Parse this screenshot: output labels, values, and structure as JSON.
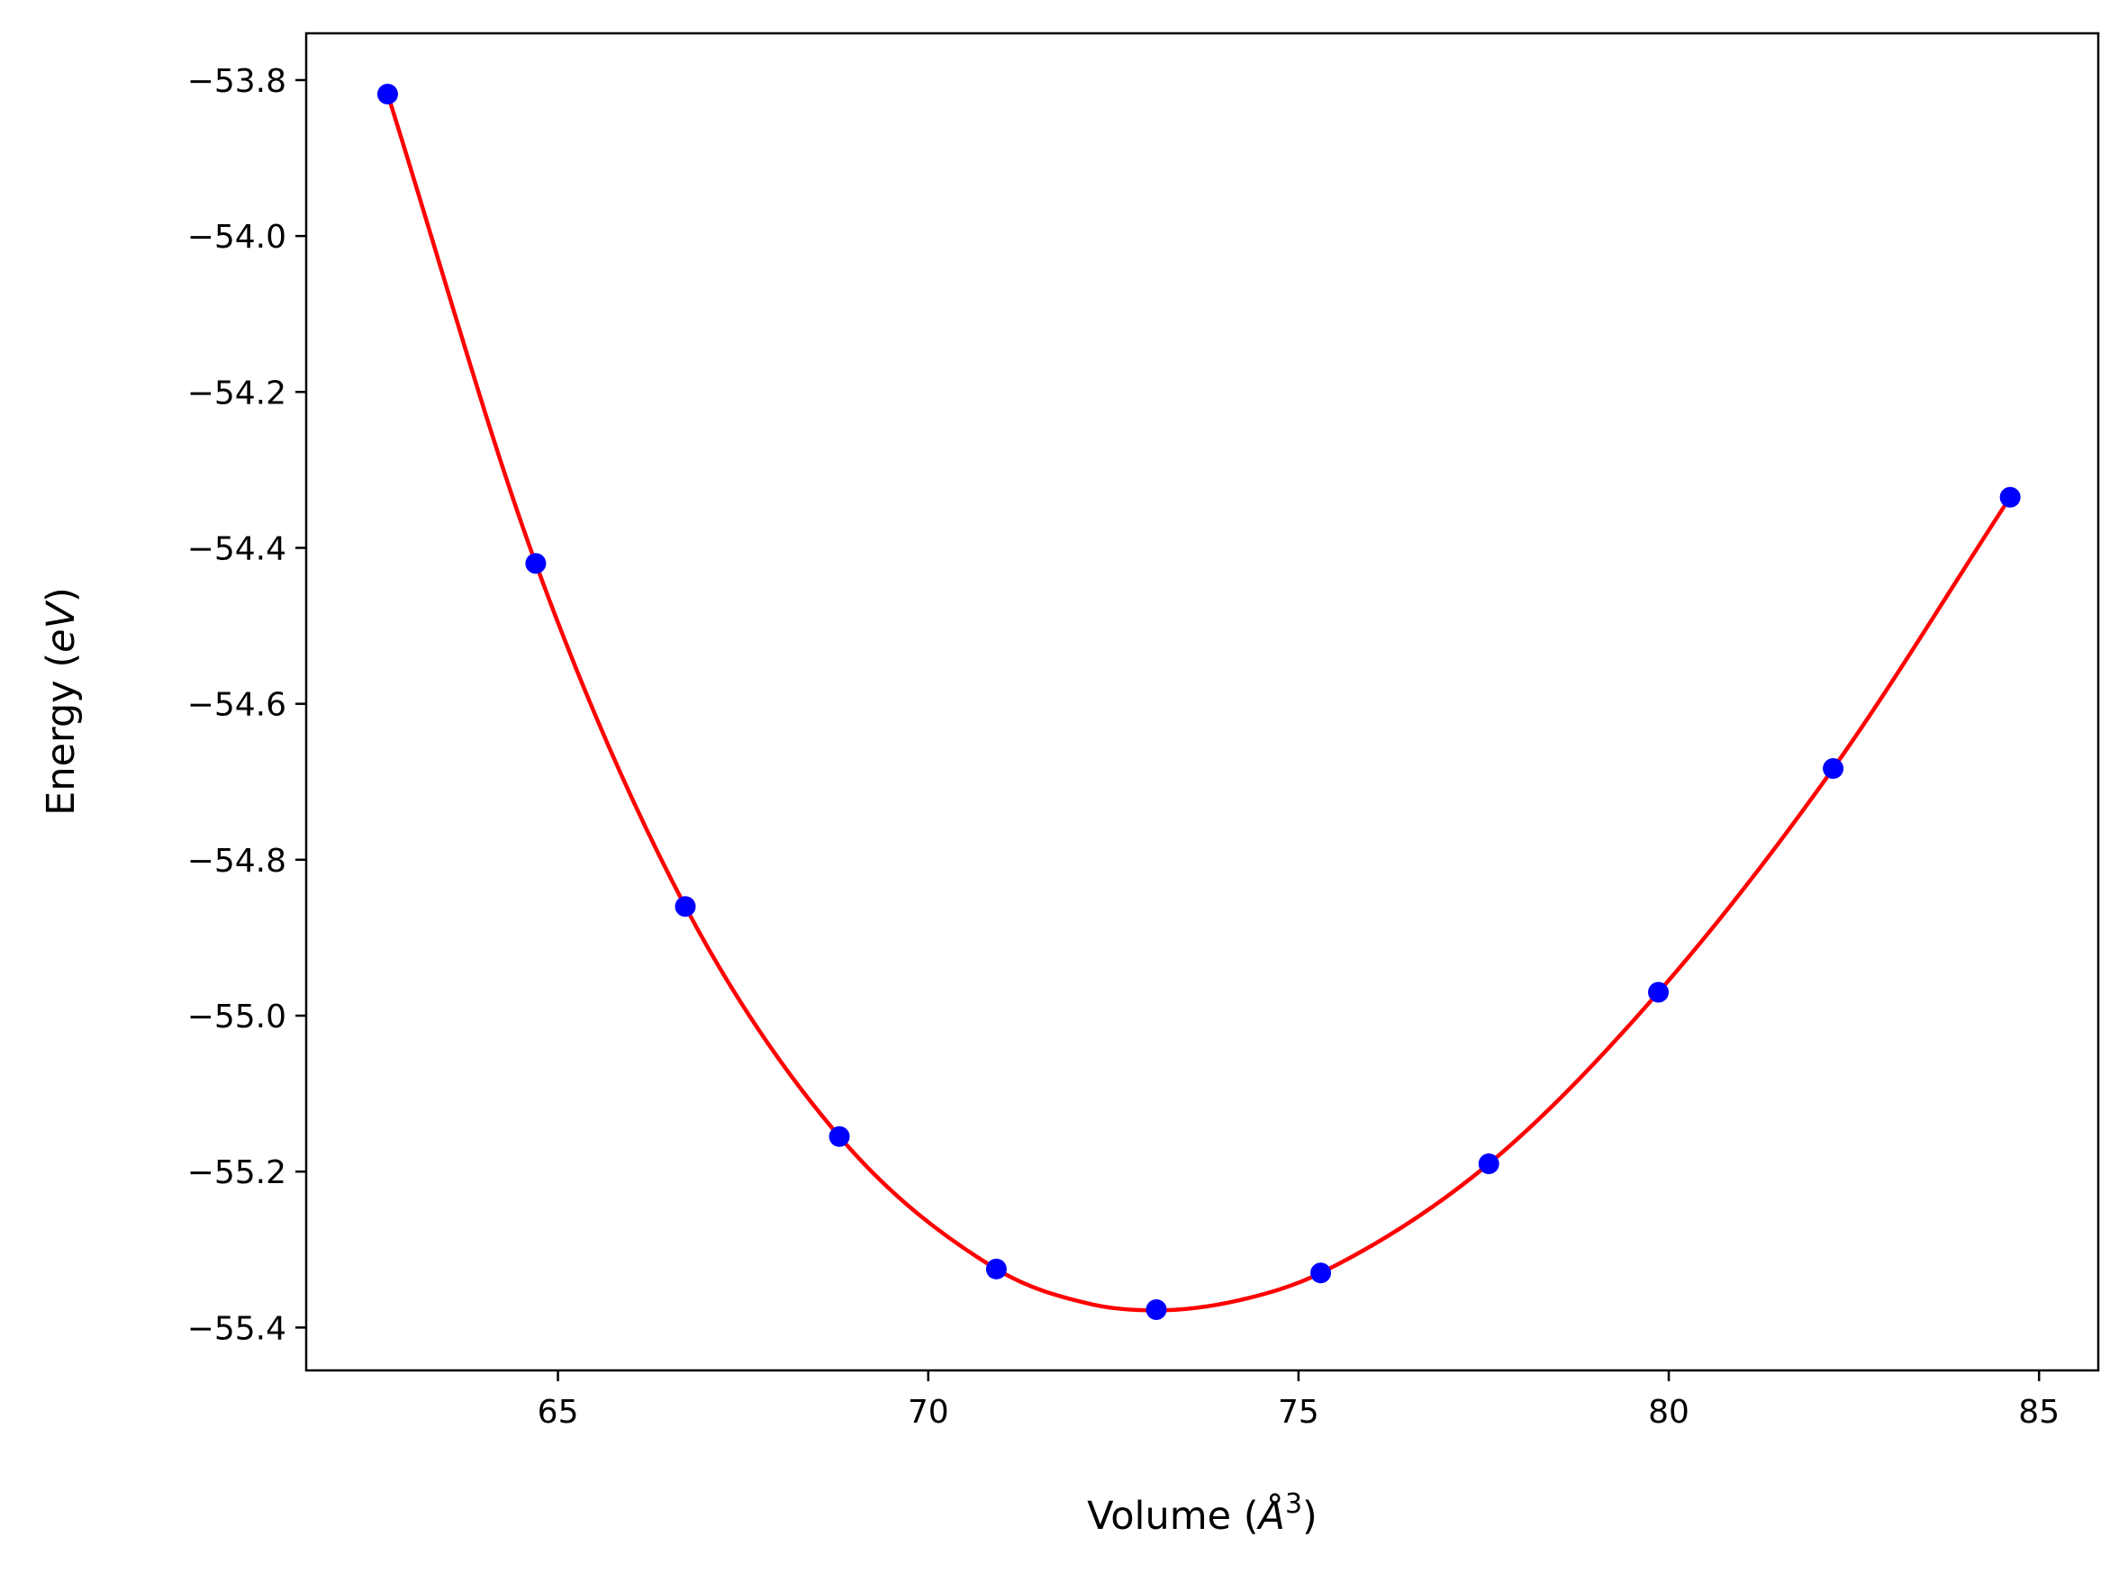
{
  "chart_data": {
    "type": "scatter",
    "title": "",
    "xlabel": {
      "prefix": "Volume (",
      "symbol": "Å",
      "sup": "3",
      "suffix": ")"
    },
    "ylabel": {
      "prefix": "Energy (",
      "unit": "eV",
      "suffix": ")"
    },
    "xlim": [
      61.6,
      85.8
    ],
    "ylim": [
      -55.455,
      -53.74
    ],
    "xticks": [
      65,
      70,
      75,
      80,
      85
    ],
    "xtick_labels": [
      "65",
      "70",
      "75",
      "80",
      "85"
    ],
    "yticks": [
      -53.8,
      -54.0,
      -54.2,
      -54.4,
      -54.6,
      -54.8,
      -55.0,
      -55.2,
      -55.4
    ],
    "ytick_labels": [
      "−53.8",
      "−54.0",
      "−54.2",
      "−54.4",
      "−54.6",
      "−54.8",
      "−55.0",
      "−55.2",
      "−55.4"
    ],
    "grid": false,
    "series": [
      {
        "kind": "points",
        "color": "#0000ff",
        "x": [
          62.7,
          64.7,
          66.72,
          68.8,
          70.92,
          73.08,
          75.3,
          77.57,
          79.86,
          82.22,
          84.61
        ],
        "y": [
          -53.818,
          -54.42,
          -54.86,
          -55.155,
          -55.325,
          -55.377,
          -55.33,
          -55.19,
          -54.97,
          -54.683,
          -54.335
        ]
      },
      {
        "kind": "fit",
        "color": "#ff0000",
        "x": [
          62.7,
          64.7,
          66.72,
          68.8,
          70.92,
          72.2,
          73.08,
          74.2,
          75.3,
          77.57,
          79.86,
          82.22,
          84.61
        ],
        "y": [
          -53.818,
          -54.42,
          -54.86,
          -55.155,
          -55.325,
          -55.37,
          -55.378,
          -55.365,
          -55.33,
          -55.19,
          -54.97,
          -54.683,
          -54.335
        ]
      }
    ]
  }
}
